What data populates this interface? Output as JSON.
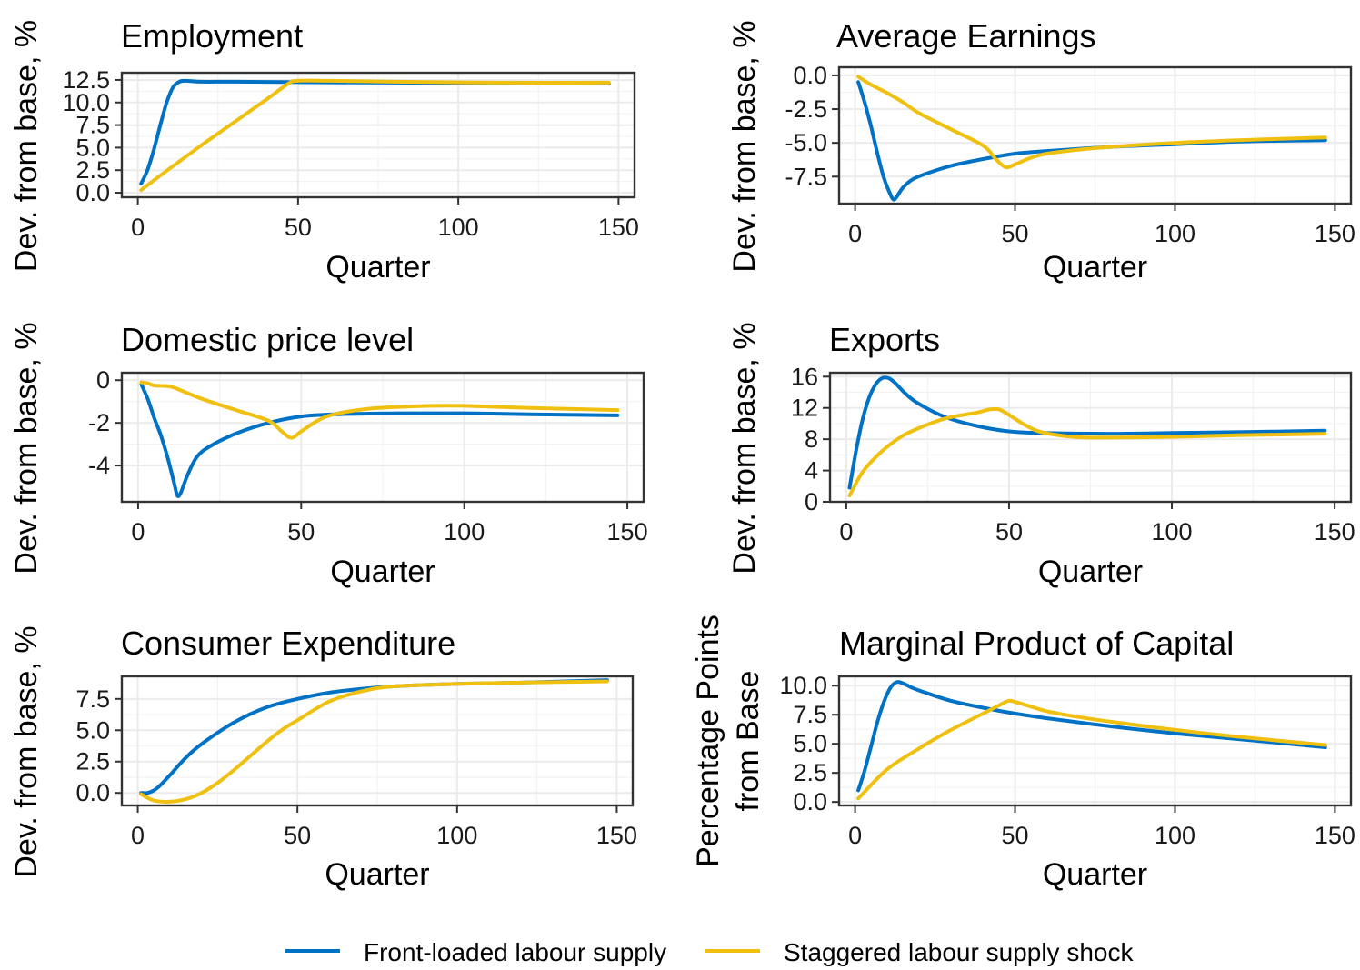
{
  "legend": [
    {
      "name": "Front-loaded labour supply",
      "color": "#0072c6"
    },
    {
      "name": "Staggered labour supply shock",
      "color": "#f0c010"
    }
  ],
  "chart_data": [
    {
      "type": "line",
      "title": "Employment",
      "xlabel": "Quarter",
      "ylabel": "Dev. from base, %",
      "xlim": [
        -5,
        155
      ],
      "ylim": [
        -0.5,
        13.3
      ],
      "xticks": [
        0,
        50,
        100,
        150
      ],
      "yticks": [
        0,
        2.5,
        5,
        7.5,
        10,
        12.5
      ],
      "ytick_labels": [
        "0.0",
        "2.5",
        "5.0",
        "7.5",
        "10.0",
        "12.5"
      ],
      "series": [
        {
          "name": "Front-loaded labour supply",
          "x": [
            1,
            3,
            5,
            7,
            9,
            11,
            13,
            15,
            20,
            30,
            50,
            80,
            110,
            147
          ],
          "y": [
            1.0,
            2.5,
            4.8,
            7.5,
            10.0,
            11.7,
            12.3,
            12.4,
            12.3,
            12.3,
            12.25,
            12.2,
            12.15,
            12.1
          ]
        },
        {
          "name": "Staggered labour supply shock",
          "x": [
            1,
            10,
            20,
            30,
            40,
            47,
            50,
            60,
            80,
            110,
            147
          ],
          "y": [
            0.3,
            2.7,
            5.3,
            7.8,
            10.3,
            12.1,
            12.4,
            12.4,
            12.3,
            12.2,
            12.2
          ]
        }
      ]
    },
    {
      "type": "line",
      "title": "Average Earnings",
      "xlabel": "Quarter",
      "ylabel": "Dev. from base, %",
      "xlim": [
        -5,
        155
      ],
      "ylim": [
        -9.5,
        0.6
      ],
      "xticks": [
        0,
        50,
        100,
        150
      ],
      "yticks": [
        0,
        -2.5,
        -5,
        -7.5
      ],
      "ytick_labels": [
        "0.0",
        "-2.5",
        "-5.0",
        "-7.5"
      ],
      "series": [
        {
          "name": "Front-loaded labour supply",
          "x": [
            1,
            3,
            5,
            7,
            9,
            11,
            12,
            13,
            15,
            18,
            22,
            30,
            40,
            50,
            60,
            80,
            100,
            120,
            147
          ],
          "y": [
            -0.5,
            -2.0,
            -3.8,
            -5.8,
            -7.6,
            -8.8,
            -9.2,
            -9.0,
            -8.3,
            -7.7,
            -7.3,
            -6.7,
            -6.2,
            -5.8,
            -5.6,
            -5.3,
            -5.1,
            -4.9,
            -4.8
          ]
        },
        {
          "name": "Staggered labour supply shock",
          "x": [
            1,
            5,
            10,
            15,
            20,
            30,
            40,
            44,
            47,
            50,
            55,
            60,
            70,
            80,
            100,
            120,
            147
          ],
          "y": [
            -0.1,
            -0.7,
            -1.3,
            -2.0,
            -2.8,
            -4.0,
            -5.2,
            -6.2,
            -6.8,
            -6.6,
            -6.1,
            -5.8,
            -5.5,
            -5.3,
            -5.0,
            -4.8,
            -4.6
          ]
        }
      ]
    },
    {
      "type": "line",
      "title": "Domestic price level",
      "xlabel": "Quarter",
      "ylabel": "Dev. from base, %",
      "xlim": [
        -5,
        155
      ],
      "ylim": [
        -5.7,
        0.35
      ],
      "xticks": [
        0,
        50,
        100,
        150
      ],
      "yticks": [
        0,
        -2,
        -4
      ],
      "ytick_labels": [
        "0",
        "-2",
        "-4"
      ],
      "series": [
        {
          "name": "Front-loaded labour supply",
          "x": [
            1,
            3,
            5,
            7,
            9,
            11,
            12,
            13,
            15,
            18,
            22,
            30,
            40,
            50,
            60,
            80,
            100,
            120,
            147
          ],
          "y": [
            -0.2,
            -0.9,
            -1.8,
            -2.6,
            -3.6,
            -4.8,
            -5.4,
            -5.3,
            -4.5,
            -3.6,
            -3.1,
            -2.5,
            -2.0,
            -1.7,
            -1.6,
            -1.55,
            -1.55,
            -1.6,
            -1.65
          ]
        },
        {
          "name": "Staggered labour supply shock",
          "x": [
            1,
            3,
            5,
            10,
            15,
            20,
            30,
            40,
            44,
            47,
            50,
            55,
            60,
            70,
            80,
            90,
            100,
            120,
            147
          ],
          "y": [
            -0.1,
            -0.15,
            -0.25,
            -0.3,
            -0.6,
            -0.9,
            -1.4,
            -1.9,
            -2.4,
            -2.7,
            -2.4,
            -1.9,
            -1.6,
            -1.35,
            -1.25,
            -1.2,
            -1.2,
            -1.3,
            -1.4
          ]
        }
      ]
    },
    {
      "type": "line",
      "title": "Exports",
      "xlabel": "Quarter",
      "ylabel": "Dev. from base, %",
      "xlim": [
        -5,
        155
      ],
      "ylim": [
        0,
        16.5
      ],
      "xticks": [
        0,
        50,
        100,
        150
      ],
      "yticks": [
        0,
        4,
        8,
        12,
        16
      ],
      "ytick_labels": [
        "0",
        "4",
        "8",
        "12",
        "16"
      ],
      "series": [
        {
          "name": "Front-loaded labour supply",
          "x": [
            1,
            3,
            5,
            7,
            9,
            11,
            13,
            15,
            18,
            22,
            30,
            40,
            50,
            60,
            80,
            100,
            120,
            147
          ],
          "y": [
            1.8,
            6.5,
            10.5,
            13.3,
            15.0,
            15.8,
            15.8,
            15.2,
            13.9,
            12.6,
            10.9,
            9.7,
            9.0,
            8.8,
            8.7,
            8.8,
            8.9,
            9.1
          ]
        },
        {
          "name": "Staggered labour supply shock",
          "x": [
            1,
            5,
            10,
            15,
            20,
            30,
            40,
            44,
            47,
            50,
            55,
            60,
            70,
            80,
            100,
            120,
            147
          ],
          "y": [
            0.8,
            3.8,
            6.1,
            7.8,
            9.0,
            10.6,
            11.4,
            11.8,
            11.8,
            11.1,
            9.8,
            8.9,
            8.3,
            8.2,
            8.3,
            8.5,
            8.7
          ]
        }
      ]
    },
    {
      "type": "line",
      "title": "Consumer Expenditure",
      "xlabel": "Quarter",
      "ylabel": "Dev. from base, %",
      "xlim": [
        -5,
        155
      ],
      "ylim": [
        -1.0,
        9.3
      ],
      "xticks": [
        0,
        50,
        100,
        150
      ],
      "yticks": [
        0,
        2.5,
        5,
        7.5
      ],
      "ytick_labels": [
        "0.0",
        "2.5",
        "5.0",
        "7.5"
      ],
      "series": [
        {
          "name": "Front-loaded labour supply",
          "x": [
            1,
            3,
            5,
            7,
            10,
            15,
            20,
            30,
            40,
            50,
            60,
            70,
            80,
            100,
            120,
            147
          ],
          "y": [
            0.0,
            0.0,
            0.2,
            0.6,
            1.4,
            2.8,
            3.9,
            5.6,
            6.8,
            7.5,
            8.0,
            8.3,
            8.5,
            8.7,
            8.8,
            9.0
          ]
        },
        {
          "name": "Staggered labour supply shock",
          "x": [
            1,
            5,
            10,
            15,
            20,
            25,
            30,
            35,
            40,
            45,
            50,
            60,
            70,
            80,
            100,
            120,
            147
          ],
          "y": [
            -0.1,
            -0.6,
            -0.7,
            -0.5,
            0.0,
            0.8,
            1.8,
            2.9,
            4.0,
            5.0,
            5.8,
            7.3,
            8.1,
            8.5,
            8.7,
            8.8,
            8.9
          ]
        }
      ]
    },
    {
      "type": "line",
      "title": "Marginal Product of Capital",
      "xlabel": "Quarter",
      "ylabel": "Percentage Points from Base",
      "ylabel_lines": [
        "Percentage Points",
        "from Base"
      ],
      "xlim": [
        -5,
        155
      ],
      "ylim": [
        -0.3,
        10.8
      ],
      "xticks": [
        0,
        50,
        100,
        150
      ],
      "yticks": [
        0,
        2.5,
        5,
        7.5,
        10
      ],
      "ytick_labels": [
        "0.0",
        "2.5",
        "5.0",
        "7.5",
        "10.0"
      ],
      "series": [
        {
          "name": "Front-loaded labour supply",
          "x": [
            1,
            3,
            5,
            7,
            9,
            11,
            13,
            15,
            18,
            22,
            30,
            40,
            50,
            60,
            80,
            100,
            120,
            147
          ],
          "y": [
            1.0,
            2.7,
            4.8,
            6.9,
            8.6,
            9.8,
            10.3,
            10.2,
            9.8,
            9.4,
            8.7,
            8.1,
            7.6,
            7.2,
            6.5,
            5.9,
            5.4,
            4.7
          ]
        },
        {
          "name": "Staggered labour supply shock",
          "x": [
            1,
            10,
            20,
            30,
            40,
            45,
            48,
            50,
            55,
            60,
            70,
            80,
            100,
            120,
            147
          ],
          "y": [
            0.3,
            2.8,
            4.6,
            6.2,
            7.6,
            8.3,
            8.7,
            8.6,
            8.2,
            7.8,
            7.3,
            6.9,
            6.2,
            5.6,
            4.9
          ]
        }
      ]
    }
  ]
}
